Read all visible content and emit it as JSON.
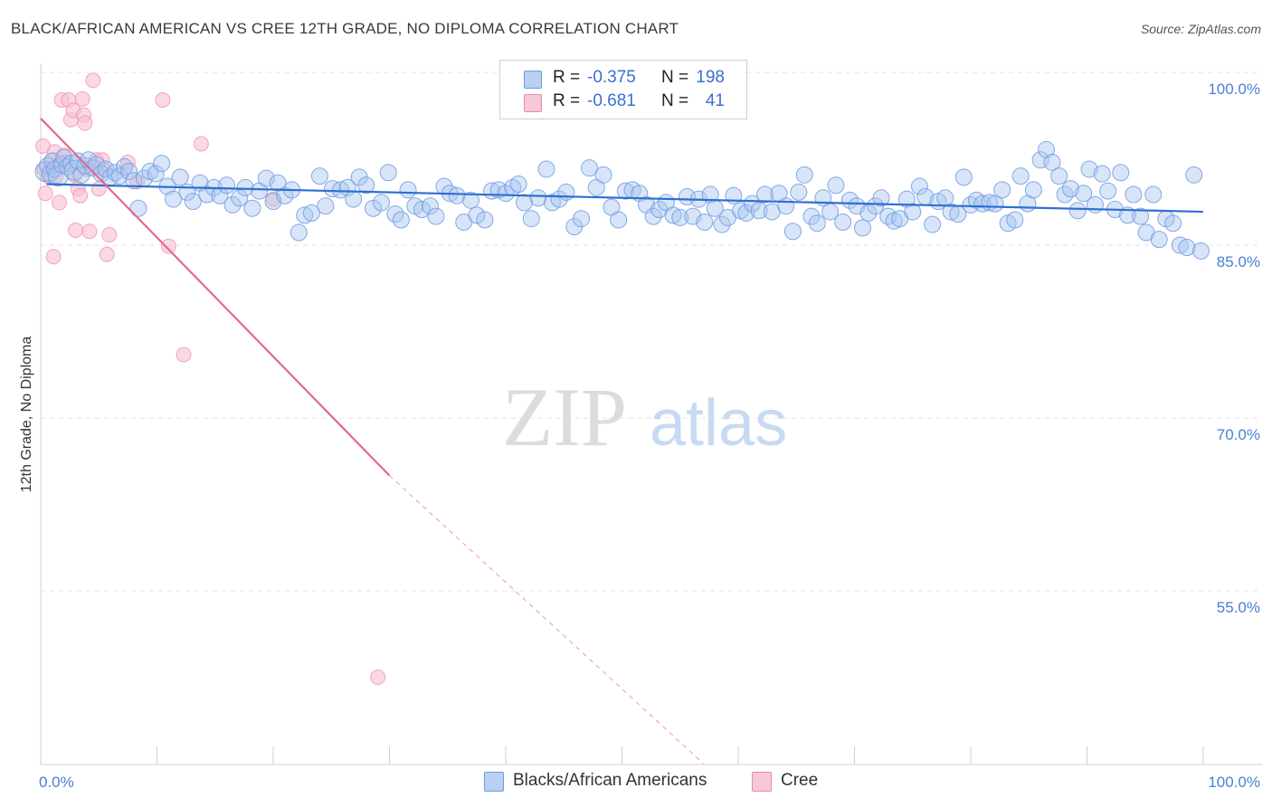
{
  "header": {
    "title": "BLACK/AFRICAN AMERICAN VS CREE 12TH GRADE, NO DIPLOMA CORRELATION CHART",
    "source": "Source: ZipAtlas.com"
  },
  "watermark": {
    "zip": "ZIP",
    "atlas": "atlas"
  },
  "legend": {
    "rows": [
      {
        "r_label": "R =",
        "r_value": "-0.375",
        "n_label": "N =",
        "n_value": "198"
      },
      {
        "r_label": "R =",
        "r_value": "-0.681",
        "n_label": "N =",
        "n_value": "41"
      }
    ]
  },
  "bottom_legend": {
    "items": [
      {
        "label": "Blacks/African Americans"
      },
      {
        "label": "Cree"
      }
    ]
  },
  "chart_data": {
    "type": "scatter",
    "title": "BLACK/AFRICAN AMERICAN VS CREE 12TH GRADE, NO DIPLOMA CORRELATION CHART",
    "xlabel": "",
    "ylabel": "12th Grade, No Diploma",
    "xlim": [
      0,
      100
    ],
    "ylim": [
      40,
      102
    ],
    "x_tick_labels": [
      "0.0%",
      "100.0%"
    ],
    "y_ticks": [
      100,
      85,
      70,
      55
    ],
    "y_tick_labels": [
      "100.0%",
      "85.0%",
      "70.0%",
      "55.0%"
    ],
    "grid": true,
    "legend_position": "top-center",
    "colors": {
      "blue": "#6f9be0",
      "blue_fill": "#a9c5f0",
      "blue_line": "#2f6fd2",
      "pink": "#ef88aa",
      "pink_fill": "#f8c3d5",
      "pink_line": "#e2698f"
    },
    "series": [
      {
        "name": "Blacks/African Americans",
        "color": "#6f9be0",
        "trend": {
          "x": [
            0.5,
            100
          ],
          "y": [
            90.3,
            87.9
          ]
        },
        "points": [
          [
            0.4,
            91.4
          ],
          [
            0.6,
            91.9
          ],
          [
            0.8,
            91.2
          ],
          [
            1.0,
            92.3
          ],
          [
            1.2,
            91.6
          ],
          [
            1.5,
            91.0
          ],
          [
            1.8,
            92.0
          ],
          [
            2.0,
            92.6
          ],
          [
            2.3,
            91.8
          ],
          [
            2.6,
            92.1
          ],
          [
            2.9,
            91.5
          ],
          [
            3.2,
            92.3
          ],
          [
            3.5,
            91.1
          ],
          [
            3.8,
            91.9
          ],
          [
            4.1,
            92.4
          ],
          [
            4.5,
            91.7
          ],
          [
            4.8,
            92.0
          ],
          [
            5.2,
            91.2
          ],
          [
            5.6,
            91.6
          ],
          [
            6.0,
            90.9
          ],
          [
            6.4,
            91.3
          ],
          [
            6.8,
            91.0
          ],
          [
            7.2,
            91.8
          ],
          [
            7.6,
            91.4
          ],
          [
            8.0,
            90.6
          ],
          [
            8.4,
            88.2
          ],
          [
            8.9,
            90.8
          ],
          [
            9.4,
            91.4
          ],
          [
            9.9,
            91.2
          ],
          [
            10.4,
            92.1
          ],
          [
            10.9,
            90.1
          ],
          [
            11.4,
            89.0
          ],
          [
            12.0,
            90.9
          ],
          [
            12.6,
            89.6
          ],
          [
            13.1,
            88.8
          ],
          [
            13.7,
            90.4
          ],
          [
            14.3,
            89.4
          ],
          [
            14.9,
            90.0
          ],
          [
            15.4,
            89.3
          ],
          [
            16.0,
            90.2
          ],
          [
            16.5,
            88.5
          ],
          [
            17.1,
            89.1
          ],
          [
            17.6,
            90.0
          ],
          [
            18.2,
            88.2
          ],
          [
            18.8,
            89.7
          ],
          [
            19.4,
            90.8
          ],
          [
            20.0,
            88.8
          ],
          [
            20.4,
            90.4
          ],
          [
            21.0,
            89.3
          ],
          [
            21.6,
            89.8
          ],
          [
            22.2,
            86.1
          ],
          [
            22.7,
            87.6
          ],
          [
            23.3,
            87.8
          ],
          [
            24.0,
            91.0
          ],
          [
            24.5,
            88.4
          ],
          [
            25.1,
            89.9
          ],
          [
            25.8,
            89.8
          ],
          [
            26.4,
            90.0
          ],
          [
            26.9,
            89.0
          ],
          [
            27.4,
            90.9
          ],
          [
            28.0,
            90.2
          ],
          [
            28.6,
            88.2
          ],
          [
            29.3,
            88.7
          ],
          [
            29.9,
            91.3
          ],
          [
            30.5,
            87.7
          ],
          [
            31.0,
            87.2
          ],
          [
            31.6,
            89.8
          ],
          [
            32.2,
            88.4
          ],
          [
            32.8,
            88.1
          ],
          [
            33.5,
            88.4
          ],
          [
            34.0,
            87.5
          ],
          [
            34.7,
            90.1
          ],
          [
            35.2,
            89.5
          ],
          [
            35.8,
            89.3
          ],
          [
            36.4,
            87.0
          ],
          [
            37.0,
            88.9
          ],
          [
            37.5,
            87.6
          ],
          [
            38.2,
            87.2
          ],
          [
            38.8,
            89.7
          ],
          [
            39.4,
            89.8
          ],
          [
            40.0,
            89.5
          ],
          [
            40.6,
            90.0
          ],
          [
            41.1,
            90.3
          ],
          [
            41.6,
            88.7
          ],
          [
            42.2,
            87.3
          ],
          [
            42.8,
            89.1
          ],
          [
            43.5,
            91.6
          ],
          [
            44.0,
            88.7
          ],
          [
            44.6,
            89.0
          ],
          [
            45.2,
            89.6
          ],
          [
            45.9,
            86.6
          ],
          [
            46.5,
            87.3
          ],
          [
            47.2,
            91.7
          ],
          [
            47.8,
            90.0
          ],
          [
            48.4,
            91.1
          ],
          [
            49.1,
            88.3
          ],
          [
            49.7,
            87.2
          ],
          [
            50.3,
            89.7
          ],
          [
            50.9,
            89.8
          ],
          [
            51.5,
            89.5
          ],
          [
            52.1,
            88.5
          ],
          [
            52.7,
            87.5
          ],
          [
            53.2,
            88.1
          ],
          [
            53.8,
            88.7
          ],
          [
            54.4,
            87.6
          ],
          [
            55.0,
            87.4
          ],
          [
            55.6,
            89.2
          ],
          [
            56.1,
            87.5
          ],
          [
            56.6,
            89.0
          ],
          [
            57.1,
            87.0
          ],
          [
            57.6,
            89.4
          ],
          [
            58.0,
            88.2
          ],
          [
            58.6,
            86.8
          ],
          [
            59.1,
            87.4
          ],
          [
            59.6,
            89.3
          ],
          [
            60.2,
            88.0
          ],
          [
            60.7,
            87.8
          ],
          [
            61.2,
            88.6
          ],
          [
            61.8,
            88.0
          ],
          [
            62.3,
            89.4
          ],
          [
            62.9,
            87.9
          ],
          [
            63.5,
            89.5
          ],
          [
            64.1,
            88.4
          ],
          [
            64.7,
            86.2
          ],
          [
            65.2,
            89.6
          ],
          [
            65.7,
            91.1
          ],
          [
            66.3,
            87.5
          ],
          [
            66.8,
            86.9
          ],
          [
            67.3,
            89.1
          ],
          [
            67.9,
            87.9
          ],
          [
            68.4,
            90.2
          ],
          [
            69.0,
            87.0
          ],
          [
            69.6,
            88.9
          ],
          [
            70.2,
            88.4
          ],
          [
            70.7,
            86.5
          ],
          [
            71.2,
            87.8
          ],
          [
            71.8,
            88.4
          ],
          [
            72.3,
            89.1
          ],
          [
            72.9,
            87.5
          ],
          [
            73.4,
            87.1
          ],
          [
            73.9,
            87.3
          ],
          [
            74.5,
            89.0
          ],
          [
            75.0,
            87.9
          ],
          [
            75.6,
            90.1
          ],
          [
            76.1,
            89.2
          ],
          [
            76.7,
            86.8
          ],
          [
            77.2,
            88.8
          ],
          [
            77.8,
            89.1
          ],
          [
            78.3,
            87.9
          ],
          [
            78.9,
            87.7
          ],
          [
            79.4,
            90.9
          ],
          [
            80.0,
            88.5
          ],
          [
            80.5,
            88.9
          ],
          [
            81.0,
            88.6
          ],
          [
            81.6,
            88.7
          ],
          [
            82.1,
            88.6
          ],
          [
            82.7,
            89.8
          ],
          [
            83.2,
            86.9
          ],
          [
            83.8,
            87.2
          ],
          [
            84.3,
            91.0
          ],
          [
            84.9,
            88.6
          ],
          [
            85.4,
            89.8
          ],
          [
            86.0,
            92.4
          ],
          [
            86.5,
            93.3
          ],
          [
            87.0,
            92.2
          ],
          [
            87.6,
            91.0
          ],
          [
            88.1,
            89.4
          ],
          [
            88.6,
            89.9
          ],
          [
            89.2,
            88.0
          ],
          [
            89.7,
            89.5
          ],
          [
            90.2,
            91.6
          ],
          [
            90.7,
            88.5
          ],
          [
            91.3,
            91.2
          ],
          [
            91.8,
            89.7
          ],
          [
            92.4,
            88.1
          ],
          [
            92.9,
            91.3
          ],
          [
            93.5,
            87.6
          ],
          [
            94.0,
            89.4
          ],
          [
            94.6,
            87.5
          ],
          [
            95.1,
            86.1
          ],
          [
            95.7,
            89.4
          ],
          [
            96.2,
            85.5
          ],
          [
            96.8,
            87.3
          ],
          [
            97.4,
            86.9
          ],
          [
            98.0,
            85.0
          ],
          [
            98.6,
            84.8
          ],
          [
            99.2,
            91.1
          ],
          [
            99.8,
            84.5
          ]
        ]
      },
      {
        "name": "Cree",
        "color": "#ef88aa",
        "trend": {
          "x": [
            0,
            30
          ],
          "y": [
            96.0,
            65.0
          ],
          "dashed_to": {
            "x": 57,
            "y": 40
          }
        },
        "points": [
          [
            0.2,
            93.6
          ],
          [
            0.4,
            89.5
          ],
          [
            0.6,
            91.0
          ],
          [
            0.8,
            91.6
          ],
          [
            1.0,
            92.4
          ],
          [
            1.2,
            93.1
          ],
          [
            1.4,
            91.8
          ],
          [
            1.6,
            88.7
          ],
          [
            1.8,
            97.6
          ],
          [
            2.0,
            92.8
          ],
          [
            2.2,
            92.2
          ],
          [
            2.4,
            97.6
          ],
          [
            2.6,
            95.9
          ],
          [
            2.8,
            96.7
          ],
          [
            3.0,
            86.3
          ],
          [
            3.2,
            89.9
          ],
          [
            3.4,
            89.3
          ],
          [
            3.6,
            97.7
          ],
          [
            3.7,
            96.3
          ],
          [
            3.8,
            95.6
          ],
          [
            4.0,
            91.6
          ],
          [
            4.2,
            86.2
          ],
          [
            4.5,
            99.3
          ],
          [
            4.8,
            92.4
          ],
          [
            5.0,
            89.9
          ],
          [
            5.3,
            92.4
          ],
          [
            5.5,
            91.5
          ],
          [
            5.7,
            84.2
          ],
          [
            5.9,
            85.9
          ],
          [
            7.5,
            92.2
          ],
          [
            8.3,
            90.5
          ],
          [
            10.5,
            97.6
          ],
          [
            11.0,
            84.9
          ],
          [
            12.3,
            75.5
          ],
          [
            13.8,
            93.8
          ],
          [
            20.0,
            89.0
          ],
          [
            29.0,
            47.5
          ],
          [
            1.1,
            84.0
          ],
          [
            2.9,
            91.1
          ],
          [
            0.3,
            91.6
          ],
          [
            1.3,
            91.0
          ]
        ]
      }
    ]
  }
}
